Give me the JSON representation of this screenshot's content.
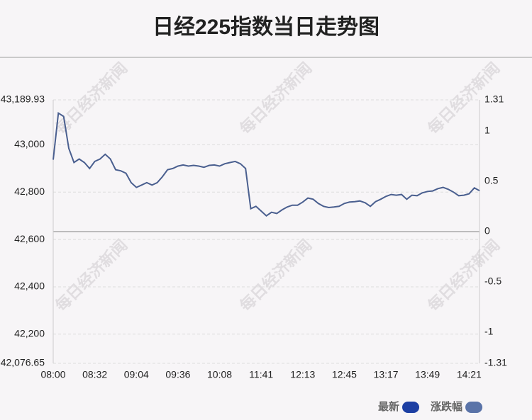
{
  "chart_data": {
    "type": "line",
    "title": "日经225指数当日走势图",
    "watermark": "每日经济新闻",
    "categories": [
      "08:00",
      null,
      null,
      null,
      null,
      null,
      null,
      null,
      "08:32",
      null,
      null,
      null,
      null,
      null,
      null,
      null,
      "09:04",
      null,
      null,
      null,
      null,
      null,
      null,
      null,
      "09:36",
      null,
      null,
      null,
      null,
      null,
      null,
      null,
      "10:08",
      null,
      null,
      null,
      null,
      null,
      null,
      null,
      "11:41",
      null,
      null,
      null,
      null,
      null,
      null,
      null,
      "12:13",
      null,
      null,
      null,
      null,
      null,
      null,
      null,
      "12:45",
      null,
      null,
      null,
      null,
      null,
      null,
      null,
      "13:17",
      null,
      null,
      null,
      null,
      null,
      null,
      null,
      "13:49",
      null,
      null,
      null,
      null,
      null,
      null,
      null,
      "14:21",
      null,
      null
    ],
    "series": [
      {
        "name": "最新",
        "color": "#4a5f8f",
        "values": [
          42937,
          43134,
          43120,
          42985,
          42925,
          42940,
          42925,
          42900,
          42930,
          42940,
          42960,
          42940,
          42895,
          42890,
          42880,
          42840,
          42820,
          42830,
          42840,
          42830,
          42840,
          42865,
          42895,
          42900,
          42910,
          42915,
          42910,
          42913,
          42910,
          42905,
          42913,
          42915,
          42910,
          42920,
          42925,
          42930,
          42920,
          42900,
          42730,
          42740,
          42720,
          42700,
          42715,
          42710,
          42725,
          42737,
          42745,
          42745,
          42758,
          42775,
          42770,
          42752,
          42740,
          42735,
          42737,
          42740,
          42752,
          42758,
          42760,
          42763,
          42755,
          42740,
          42760,
          42770,
          42782,
          42790,
          42787,
          42790,
          42770,
          42787,
          42785,
          42797,
          42803,
          42805,
          42815,
          42820,
          42812,
          42800,
          42785,
          42787,
          42793,
          42818,
          42806
        ]
      }
    ],
    "legend": [
      {
        "name": "最新",
        "color": "#1d3fa3"
      },
      {
        "name": "涨跌幅",
        "color": "#5a73a8"
      }
    ],
    "ylim": [
      {
        "value": 42076.65,
        "label": "42,076.65"
      },
      {
        "value": 43189.93,
        "label": "43,189.93"
      }
    ],
    "yticks": [
      {
        "value": 43000,
        "label": "43,000"
      },
      {
        "value": 42800,
        "label": "42,800"
      },
      {
        "value": 42600,
        "label": "42,600"
      },
      {
        "value": 42400,
        "label": "42,400"
      },
      {
        "value": 42200,
        "label": "42,200"
      }
    ],
    "y2lim": [
      -1.31,
      1.31
    ],
    "y2ticks": [
      1,
      0.5,
      0,
      -0.5,
      -1
    ],
    "grid": true
  }
}
